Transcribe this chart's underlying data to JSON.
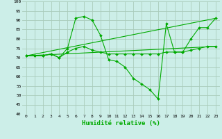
{
  "title": "",
  "xlabel": "Humidité relative (%)",
  "ylabel": "",
  "bg_color": "#cceee8",
  "grid_color": "#aaccbb",
  "line_color": "#00aa00",
  "xlim": [
    -0.5,
    23.5
  ],
  "ylim": [
    40,
    100
  ],
  "yticks": [
    40,
    45,
    50,
    55,
    60,
    65,
    70,
    75,
    80,
    85,
    90,
    95,
    100
  ],
  "xticks": [
    0,
    1,
    2,
    3,
    4,
    5,
    6,
    7,
    8,
    9,
    10,
    11,
    12,
    13,
    14,
    15,
    16,
    17,
    18,
    19,
    20,
    21,
    22,
    23
  ],
  "series": [
    {
      "x": [
        0,
        1,
        2,
        3,
        4,
        5,
        6,
        7,
        8,
        9,
        10,
        11,
        12,
        13,
        14,
        15,
        16,
        17,
        18,
        19,
        20,
        21,
        22,
        23
      ],
      "y": [
        71,
        71,
        71,
        72,
        70,
        75,
        91,
        92,
        90,
        82,
        69,
        68,
        65,
        59,
        56,
        53,
        48,
        88,
        73,
        73,
        80,
        86,
        86,
        91
      ],
      "marker": true
    },
    {
      "x": [
        0,
        1,
        2,
        3,
        4,
        5,
        6,
        7,
        8,
        9,
        10,
        11,
        12,
        13,
        14,
        15,
        16,
        17,
        18,
        19,
        20,
        21,
        22,
        23
      ],
      "y": [
        71,
        71,
        71,
        72,
        70,
        73,
        75,
        76,
        74,
        73,
        72,
        72,
        72,
        72,
        72,
        72,
        72,
        73,
        73,
        73,
        74,
        75,
        76,
        76
      ],
      "marker": true
    },
    {
      "x": [
        0,
        23
      ],
      "y": [
        71,
        91
      ],
      "marker": false
    },
    {
      "x": [
        0,
        23
      ],
      "y": [
        71,
        76
      ],
      "marker": false
    }
  ]
}
